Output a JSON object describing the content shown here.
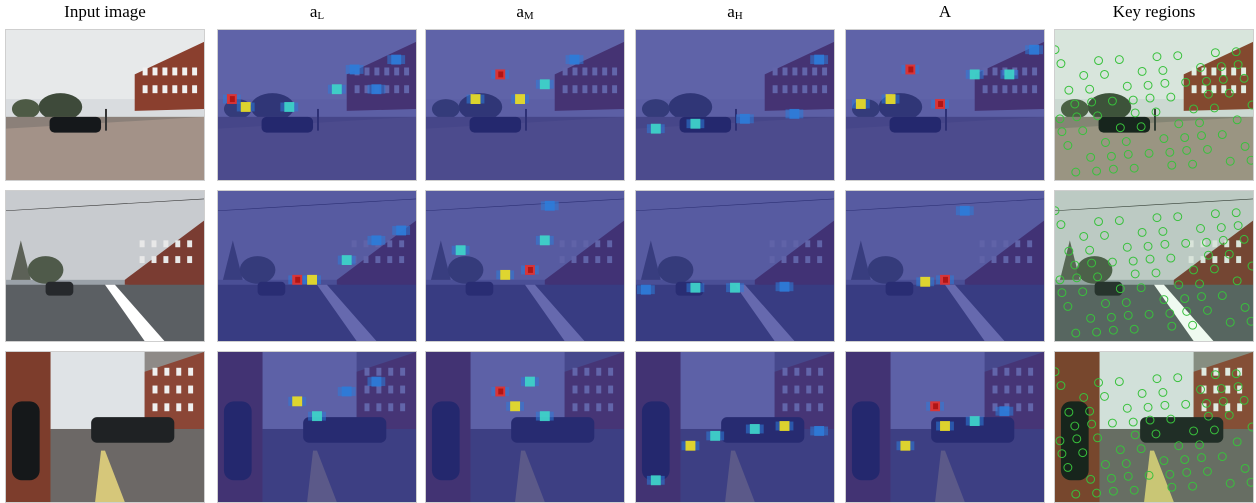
{
  "headers": {
    "input": "Input image",
    "aL_base": "a",
    "aL_sub": "L",
    "aM_base": "a",
    "aM_sub": "M",
    "aH_base": "a",
    "aH_sub": "H",
    "A": "A",
    "key": "Key regions"
  },
  "rows": [
    {
      "scene": "street corner with brick building and parked black car"
    },
    {
      "scene": "straight road with brick buildings and a car ahead"
    },
    {
      "scene": "sidewalk with pedestrian, brick buildings and parked car"
    }
  ],
  "colors": {
    "overlay": "#2b2f8f",
    "heat_low": "#2e7bd8",
    "heat_mid": "#3fd6c8",
    "heat_high": "#f0e020",
    "heat_peak": "#e8302a",
    "key_circle": "#39c23c"
  }
}
